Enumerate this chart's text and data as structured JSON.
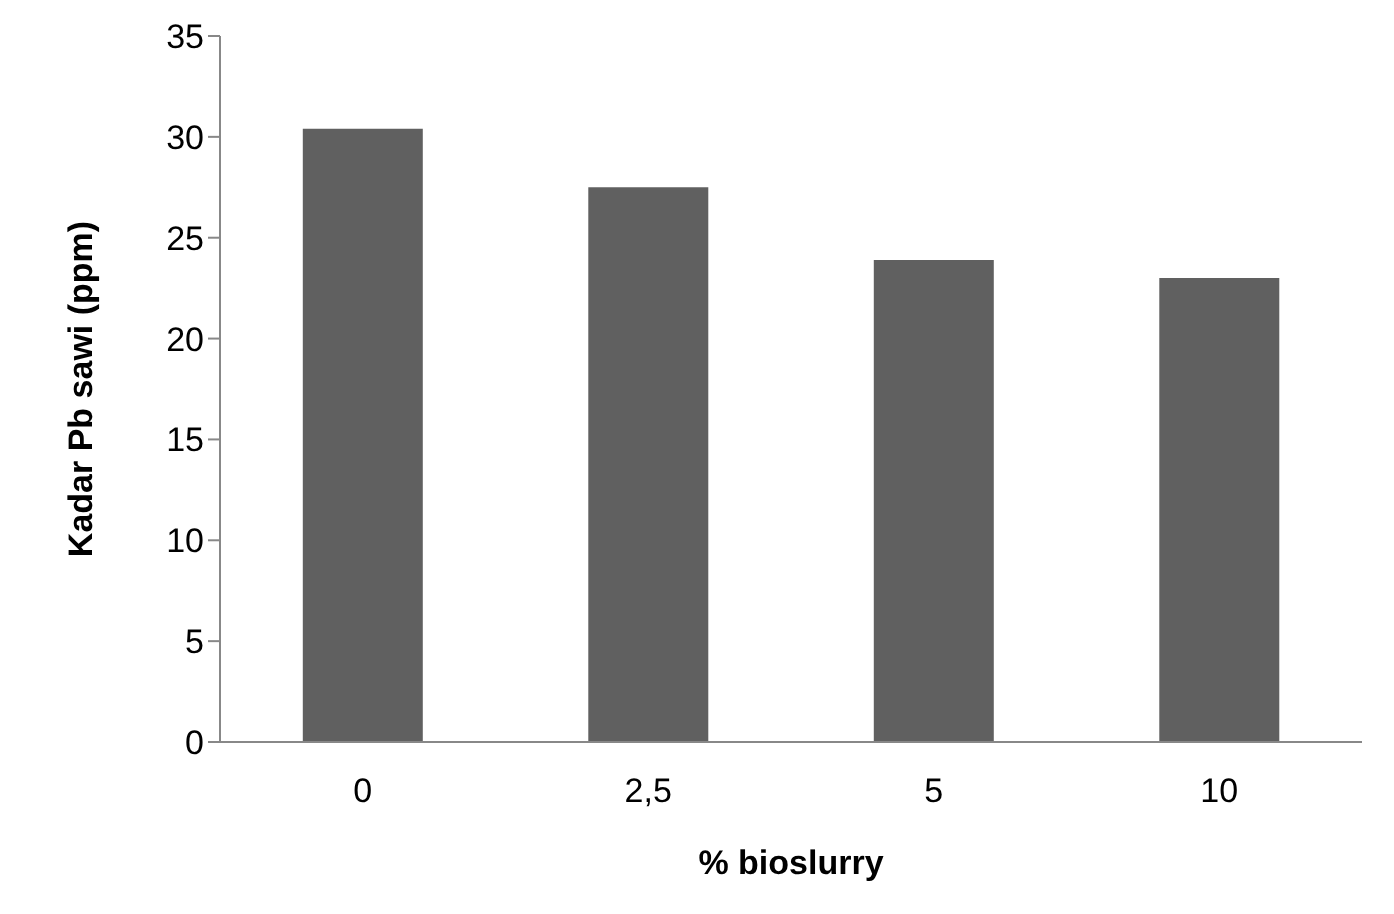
{
  "chart_data": {
    "type": "bar",
    "xlabel": "% bioslurry",
    "ylabel": "Kadar Pb sawi (ppm)",
    "categories": [
      "0",
      "2,5",
      "5",
      "10"
    ],
    "values": [
      30.4,
      27.5,
      23.9,
      23.0
    ],
    "color": "#606060",
    "ylim": [
      0,
      35
    ],
    "yticks": [
      0,
      5,
      10,
      15,
      20,
      25,
      30,
      35
    ],
    "grid": false,
    "legend": false
  }
}
